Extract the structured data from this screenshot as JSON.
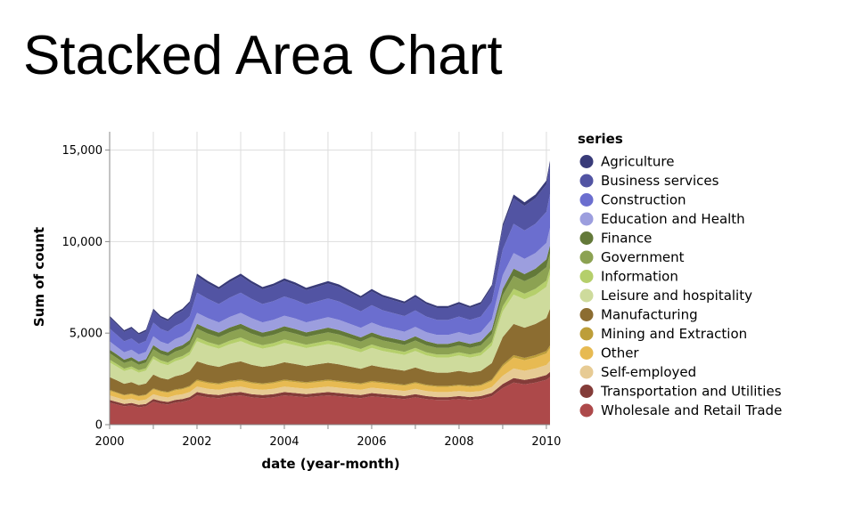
{
  "page": {
    "title": "Stacked Area Chart"
  },
  "chart_data": {
    "type": "area",
    "stacked": true,
    "xlabel": "date (year-month)",
    "ylabel": "Sum of count",
    "ylim": [
      0,
      16000
    ],
    "y_ticks": [
      0,
      5000,
      10000,
      15000
    ],
    "y_tick_labels": [
      "0",
      "5,000",
      "10,000",
      "15,000"
    ],
    "x_ticks": [
      "2000",
      "2002",
      "2004",
      "2006",
      "2008",
      "2010"
    ],
    "grid": true,
    "legend": {
      "title": "series",
      "position": "right"
    },
    "x_start": "2000-01",
    "x_end": "2010-02",
    "x_keyframes": [
      "2000-01",
      "2000-03",
      "2000-05",
      "2000-07",
      "2000-09",
      "2000-11",
      "2001-01",
      "2001-03",
      "2001-05",
      "2001-07",
      "2001-09",
      "2001-11",
      "2002-01",
      "2002-04",
      "2002-07",
      "2002-10",
      "2003-01",
      "2003-04",
      "2003-07",
      "2003-10",
      "2004-01",
      "2004-04",
      "2004-07",
      "2004-10",
      "2005-01",
      "2005-04",
      "2005-07",
      "2005-10",
      "2006-01",
      "2006-04",
      "2006-07",
      "2006-10",
      "2007-01",
      "2007-04",
      "2007-07",
      "2007-10",
      "2008-01",
      "2008-04",
      "2008-07",
      "2008-10",
      "2009-01",
      "2009-04",
      "2009-07",
      "2009-10",
      "2010-01",
      "2010-02"
    ],
    "series": [
      {
        "name": "Wholesale and Retail Trade",
        "color": "#ad494a",
        "values": [
          1200,
          1100,
          1000,
          1050,
          950,
          1000,
          1250,
          1150,
          1100,
          1200,
          1250,
          1350,
          1600,
          1500,
          1450,
          1550,
          1600,
          1500,
          1450,
          1500,
          1600,
          1550,
          1500,
          1550,
          1600,
          1550,
          1500,
          1450,
          1550,
          1500,
          1450,
          1400,
          1500,
          1400,
          1350,
          1350,
          1400,
          1350,
          1400,
          1550,
          2000,
          2300,
          2200,
          2300,
          2450,
          2600
        ]
      },
      {
        "name": "Transportation and Utilities",
        "color": "#843c39",
        "values": [
          150,
          140,
          130,
          135,
          130,
          135,
          150,
          145,
          140,
          150,
          150,
          160,
          180,
          170,
          165,
          175,
          180,
          170,
          165,
          170,
          180,
          175,
          170,
          175,
          180,
          175,
          170,
          165,
          175,
          170,
          165,
          160,
          170,
          160,
          155,
          155,
          160,
          155,
          160,
          180,
          220,
          250,
          240,
          250,
          260,
          280
        ]
      },
      {
        "name": "Self-employed",
        "color": "#e7cb94",
        "values": [
          250,
          240,
          230,
          235,
          230,
          235,
          260,
          250,
          245,
          255,
          260,
          270,
          300,
          290,
          285,
          295,
          300,
          290,
          285,
          290,
          300,
          295,
          290,
          295,
          300,
          295,
          290,
          285,
          295,
          290,
          285,
          280,
          290,
          280,
          275,
          275,
          280,
          275,
          280,
          320,
          450,
          520,
          500,
          520,
          550,
          600
        ]
      },
      {
        "name": "Other",
        "color": "#e7ba52",
        "values": [
          250,
          240,
          230,
          235,
          230,
          235,
          270,
          260,
          255,
          265,
          270,
          280,
          310,
          300,
          295,
          305,
          310,
          300,
          295,
          300,
          310,
          305,
          300,
          305,
          310,
          305,
          300,
          295,
          305,
          300,
          295,
          290,
          300,
          290,
          285,
          285,
          290,
          285,
          290,
          340,
          500,
          600,
          580,
          600,
          630,
          700
        ]
      },
      {
        "name": "Mining and Extraction",
        "color": "#bd9e39",
        "values": [
          50,
          45,
          40,
          45,
          40,
          45,
          55,
          50,
          50,
          55,
          55,
          60,
          70,
          65,
          60,
          65,
          70,
          65,
          60,
          65,
          70,
          65,
          60,
          65,
          70,
          65,
          60,
          60,
          65,
          60,
          60,
          55,
          60,
          55,
          55,
          55,
          55,
          55,
          55,
          70,
          110,
          130,
          125,
          130,
          135,
          150
        ]
      },
      {
        "name": "Manufacturing",
        "color": "#8c6d31",
        "values": [
          700,
          650,
          600,
          620,
          580,
          600,
          750,
          700,
          680,
          720,
          750,
          800,
          1000,
          950,
          900,
          950,
          1000,
          950,
          900,
          920,
          950,
          920,
          880,
          900,
          920,
          900,
          850,
          800,
          850,
          800,
          780,
          760,
          800,
          750,
          720,
          720,
          750,
          720,
          750,
          900,
          1500,
          1700,
          1650,
          1700,
          1800,
          2000
        ]
      },
      {
        "name": "Leisure and hospitality",
        "color": "#cedb9c",
        "values": [
          800,
          750,
          700,
          720,
          680,
          700,
          850,
          800,
          780,
          820,
          850,
          900,
          1100,
          1050,
          1000,
          1050,
          1100,
          1050,
          1000,
          1020,
          1050,
          1020,
          980,
          1000,
          1020,
          1000,
          950,
          900,
          950,
          900,
          880,
          860,
          900,
          850,
          820,
          820,
          850,
          820,
          850,
          950,
          1400,
          1600,
          1550,
          1600,
          1700,
          1850
        ]
      },
      {
        "name": "Information",
        "color": "#b5cf6b",
        "values": [
          150,
          140,
          130,
          135,
          130,
          135,
          160,
          150,
          145,
          155,
          160,
          170,
          200,
          190,
          185,
          195,
          200,
          190,
          185,
          190,
          195,
          190,
          185,
          190,
          195,
          190,
          185,
          180,
          185,
          180,
          175,
          170,
          175,
          170,
          165,
          165,
          170,
          165,
          170,
          200,
          280,
          320,
          310,
          320,
          340,
          370
        ]
      },
      {
        "name": "Government",
        "color": "#8ca252",
        "values": [
          350,
          330,
          310,
          320,
          300,
          310,
          380,
          360,
          350,
          370,
          380,
          400,
          480,
          460,
          440,
          460,
          480,
          460,
          440,
          450,
          460,
          450,
          430,
          440,
          450,
          440,
          420,
          400,
          420,
          400,
          390,
          380,
          400,
          380,
          370,
          370,
          380,
          370,
          380,
          430,
          600,
          700,
          680,
          700,
          740,
          800
        ]
      },
      {
        "name": "Finance",
        "color": "#637939",
        "values": [
          200,
          190,
          180,
          185,
          175,
          180,
          220,
          210,
          205,
          215,
          220,
          230,
          270,
          260,
          250,
          260,
          270,
          260,
          250,
          255,
          260,
          255,
          245,
          250,
          255,
          250,
          240,
          230,
          240,
          230,
          225,
          220,
          230,
          220,
          215,
          215,
          220,
          215,
          220,
          250,
          350,
          400,
          390,
          400,
          420,
          450
        ]
      },
      {
        "name": "Education and Health",
        "color": "#9c9ede",
        "values": [
          450,
          420,
          400,
          410,
          390,
          400,
          480,
          460,
          450,
          470,
          480,
          500,
          600,
          580,
          560,
          580,
          600,
          580,
          560,
          570,
          580,
          570,
          550,
          560,
          570,
          560,
          540,
          520,
          540,
          520,
          510,
          500,
          520,
          500,
          490,
          490,
          500,
          490,
          500,
          560,
          750,
          850,
          830,
          850,
          900,
          950
        ]
      },
      {
        "name": "Construction",
        "color": "#6b6ecf",
        "values": [
          700,
          650,
          600,
          620,
          580,
          600,
          750,
          700,
          680,
          720,
          750,
          800,
          1100,
          1050,
          1000,
          1050,
          1100,
          1050,
          1000,
          1020,
          1050,
          1020,
          980,
          1000,
          1020,
          1000,
          950,
          900,
          950,
          900,
          880,
          860,
          900,
          850,
          820,
          820,
          850,
          820,
          850,
          950,
          1400,
          1600,
          1550,
          1600,
          1700,
          1850
        ]
      },
      {
        "name": "Business services",
        "color": "#5254a3",
        "values": [
          600,
          560,
          520,
          540,
          500,
          520,
          650,
          600,
          580,
          620,
          650,
          700,
          900,
          850,
          800,
          850,
          900,
          850,
          800,
          820,
          850,
          820,
          780,
          800,
          820,
          800,
          760,
          720,
          760,
          720,
          700,
          680,
          720,
          680,
          650,
          650,
          680,
          650,
          680,
          800,
          1200,
          1400,
          1350,
          1400,
          1500,
          1600
        ]
      },
      {
        "name": "Agriculture",
        "color": "#393b79",
        "values": [
          100,
          95,
          90,
          95,
          90,
          95,
          110,
          105,
          100,
          105,
          110,
          115,
          140,
          135,
          130,
          135,
          140,
          135,
          130,
          132,
          135,
          132,
          128,
          130,
          132,
          130,
          125,
          120,
          125,
          120,
          118,
          115,
          120,
          115,
          112,
          112,
          115,
          112,
          115,
          130,
          180,
          200,
          195,
          200,
          210,
          220
        ]
      }
    ]
  }
}
